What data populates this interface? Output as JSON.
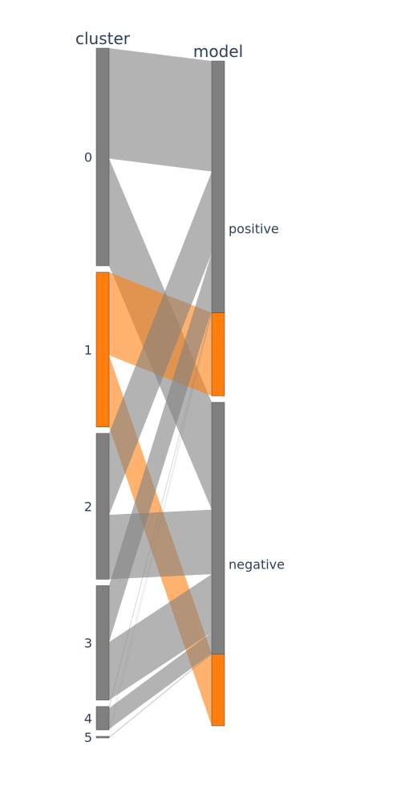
{
  "chart_data": {
    "type": "parcats",
    "dimensions": [
      {
        "label": "cluster",
        "categories": [
          "0",
          "1",
          "2",
          "3",
          "4",
          "5"
        ]
      },
      {
        "label": "model",
        "categories": [
          "positive",
          "negative"
        ]
      }
    ],
    "flows": [
      {
        "from": "0",
        "to": "positive",
        "highlight": false,
        "count": 137
      },
      {
        "from": "0",
        "to": "negative",
        "highlight": false,
        "count": 133
      },
      {
        "from": "1",
        "to": "positive",
        "highlight": true,
        "count": 103
      },
      {
        "from": "1",
        "to": "negative",
        "highlight": true,
        "count": 89
      },
      {
        "from": "2",
        "to": "positive",
        "highlight": false,
        "count": 101
      },
      {
        "from": "2",
        "to": "negative",
        "highlight": false,
        "count": 80
      },
      {
        "from": "3",
        "to": "positive",
        "highlight": false,
        "count": 70
      },
      {
        "from": "3",
        "to": "negative",
        "highlight": false,
        "count": 72
      },
      {
        "from": "4",
        "to": "positive",
        "highlight": false,
        "count": 2
      },
      {
        "from": "4",
        "to": "negative",
        "highlight": false,
        "count": 26
      },
      {
        "from": "4",
        "to": "positive",
        "highlight": false,
        "count": 1
      },
      {
        "from": "5",
        "to": "positive",
        "highlight": false,
        "count": 1
      },
      {
        "from": "5",
        "to": "negative",
        "highlight": false,
        "count": 1
      }
    ],
    "colors": {
      "base": "#808080",
      "highlight": "#ff7f0e"
    }
  }
}
